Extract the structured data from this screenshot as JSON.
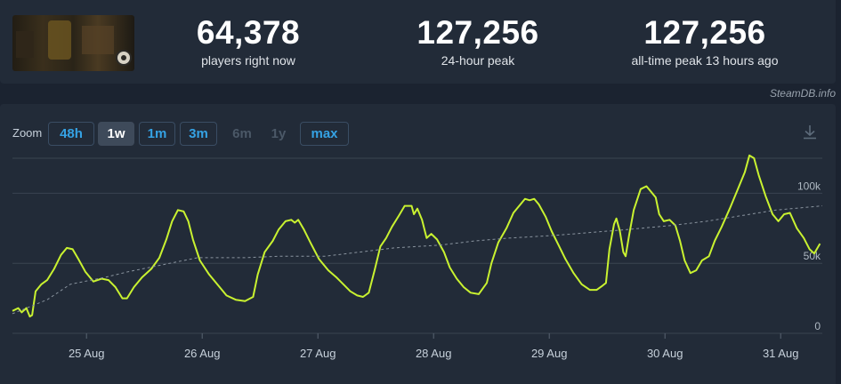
{
  "stats": {
    "now": {
      "value": "64,378",
      "label": "players right now"
    },
    "peak24": {
      "value": "127,256",
      "label": "24-hour peak"
    },
    "alltime": {
      "value": "127,256",
      "label": "all-time peak 13 hours ago"
    }
  },
  "credit": "SteamDB.info",
  "zoom": {
    "label": "Zoom",
    "buttons": [
      {
        "label": "48h",
        "state": "normal"
      },
      {
        "label": "1w",
        "state": "active"
      },
      {
        "label": "1m",
        "state": "normal"
      },
      {
        "label": "3m",
        "state": "normal"
      },
      {
        "label": "6m",
        "state": "disabled"
      },
      {
        "label": "1y",
        "state": "disabled"
      },
      {
        "label": "max",
        "state": "normal"
      }
    ]
  },
  "icons": {
    "download": "download-icon",
    "thumbnail": "game-thumbnail"
  },
  "colors": {
    "line": "#c9f230",
    "trend": "#8a949f",
    "grid": "#3a4451",
    "text": "#c6d0da"
  },
  "chart_data": {
    "type": "line",
    "title": "",
    "xlabel": "",
    "ylabel": "",
    "ylim": [
      0,
      125000
    ],
    "yticks": [
      {
        "value": 0,
        "label": "0"
      },
      {
        "value": 50000,
        "label": "50k"
      },
      {
        "value": 100000,
        "label": "100k"
      }
    ],
    "xlim": [
      0,
      7
    ],
    "xticks": [
      {
        "value": 0.64,
        "label": "25 Aug"
      },
      {
        "value": 1.64,
        "label": "26 Aug"
      },
      {
        "value": 2.64,
        "label": "27 Aug"
      },
      {
        "value": 3.64,
        "label": "28 Aug"
      },
      {
        "value": 4.64,
        "label": "29 Aug"
      },
      {
        "value": 5.64,
        "label": "30 Aug"
      },
      {
        "value": 6.64,
        "label": "31 Aug"
      }
    ],
    "grid": true,
    "series": [
      {
        "role": "players",
        "points": [
          [
            0.0,
            16000
          ],
          [
            0.05,
            18000
          ],
          [
            0.08,
            15000
          ],
          [
            0.12,
            18000
          ],
          [
            0.15,
            12000
          ],
          [
            0.17,
            13000
          ],
          [
            0.2,
            30000
          ],
          [
            0.25,
            35000
          ],
          [
            0.3,
            38000
          ],
          [
            0.36,
            46000
          ],
          [
            0.42,
            56000
          ],
          [
            0.47,
            61000
          ],
          [
            0.52,
            60000
          ],
          [
            0.57,
            53000
          ],
          [
            0.63,
            44000
          ],
          [
            0.7,
            37000
          ],
          [
            0.77,
            39000
          ],
          [
            0.83,
            38000
          ],
          [
            0.89,
            33000
          ],
          [
            0.95,
            25000
          ],
          [
            0.99,
            25000
          ],
          [
            1.05,
            33000
          ],
          [
            1.12,
            40000
          ],
          [
            1.2,
            46000
          ],
          [
            1.27,
            54000
          ],
          [
            1.33,
            67000
          ],
          [
            1.38,
            80000
          ],
          [
            1.43,
            88000
          ],
          [
            1.48,
            87000
          ],
          [
            1.52,
            80000
          ],
          [
            1.56,
            67000
          ],
          [
            1.62,
            52000
          ],
          [
            1.7,
            42000
          ],
          [
            1.77,
            35000
          ],
          [
            1.85,
            27000
          ],
          [
            1.93,
            24000
          ],
          [
            2.01,
            23000
          ],
          [
            2.08,
            26000
          ],
          [
            2.12,
            42000
          ],
          [
            2.18,
            58000
          ],
          [
            2.25,
            66000
          ],
          [
            2.3,
            74000
          ],
          [
            2.36,
            80000
          ],
          [
            2.41,
            81000
          ],
          [
            2.44,
            79000
          ],
          [
            2.47,
            81000
          ],
          [
            2.52,
            74000
          ],
          [
            2.58,
            64000
          ],
          [
            2.65,
            53000
          ],
          [
            2.73,
            45000
          ],
          [
            2.8,
            40000
          ],
          [
            2.86,
            35000
          ],
          [
            2.92,
            30000
          ],
          [
            2.98,
            27000
          ],
          [
            3.03,
            26000
          ],
          [
            3.08,
            29000
          ],
          [
            3.13,
            45000
          ],
          [
            3.18,
            62000
          ],
          [
            3.23,
            68000
          ],
          [
            3.28,
            76000
          ],
          [
            3.34,
            84000
          ],
          [
            3.39,
            91000
          ],
          [
            3.45,
            91000
          ],
          [
            3.47,
            85000
          ],
          [
            3.5,
            89000
          ],
          [
            3.54,
            81000
          ],
          [
            3.58,
            68000
          ],
          [
            3.62,
            71000
          ],
          [
            3.67,
            67000
          ],
          [
            3.73,
            58000
          ],
          [
            3.78,
            47000
          ],
          [
            3.84,
            39000
          ],
          [
            3.9,
            33000
          ],
          [
            3.96,
            29000
          ],
          [
            4.03,
            28000
          ],
          [
            4.1,
            36000
          ],
          [
            4.14,
            50000
          ],
          [
            4.2,
            65000
          ],
          [
            4.27,
            75000
          ],
          [
            4.33,
            86000
          ],
          [
            4.38,
            91000
          ],
          [
            4.43,
            96000
          ],
          [
            4.47,
            95000
          ],
          [
            4.51,
            96000
          ],
          [
            4.55,
            92000
          ],
          [
            4.61,
            83000
          ],
          [
            4.66,
            73000
          ],
          [
            4.72,
            63000
          ],
          [
            4.78,
            53000
          ],
          [
            4.85,
            43000
          ],
          [
            4.92,
            35000
          ],
          [
            4.99,
            31000
          ],
          [
            5.05,
            31000
          ],
          [
            5.1,
            34000
          ],
          [
            5.13,
            36000
          ],
          [
            5.16,
            60000
          ],
          [
            5.2,
            78000
          ],
          [
            5.22,
            82000
          ],
          [
            5.25,
            73000
          ],
          [
            5.28,
            58000
          ],
          [
            5.3,
            55000
          ],
          [
            5.33,
            70000
          ],
          [
            5.37,
            88000
          ],
          [
            5.43,
            103000
          ],
          [
            5.48,
            105000
          ],
          [
            5.52,
            101000
          ],
          [
            5.56,
            97000
          ],
          [
            5.59,
            85000
          ],
          [
            5.63,
            80000
          ],
          [
            5.68,
            81000
          ],
          [
            5.73,
            77000
          ],
          [
            5.77,
            66000
          ],
          [
            5.81,
            52000
          ],
          [
            5.86,
            43000
          ],
          [
            5.91,
            45000
          ],
          [
            5.96,
            52000
          ],
          [
            6.02,
            55000
          ],
          [
            6.07,
            66000
          ],
          [
            6.13,
            76000
          ],
          [
            6.2,
            89000
          ],
          [
            6.27,
            103000
          ],
          [
            6.33,
            115000
          ],
          [
            6.37,
            127000
          ],
          [
            6.41,
            125000
          ],
          [
            6.45,
            113000
          ],
          [
            6.51,
            98000
          ],
          [
            6.57,
            85000
          ],
          [
            6.62,
            80000
          ],
          [
            6.67,
            85000
          ],
          [
            6.72,
            86000
          ],
          [
            6.78,
            75000
          ],
          [
            6.84,
            68000
          ],
          [
            6.89,
            60000
          ],
          [
            6.93,
            57000
          ],
          [
            6.98,
            64000
          ]
        ]
      },
      {
        "role": "trend",
        "points": [
          [
            0.0,
            14000
          ],
          [
            0.3,
            24000
          ],
          [
            0.5,
            35000
          ],
          [
            0.8,
            40000
          ],
          [
            1.0,
            44000
          ],
          [
            1.3,
            49000
          ],
          [
            1.6,
            54000
          ],
          [
            2.0,
            54000
          ],
          [
            2.3,
            55000
          ],
          [
            2.7,
            55000
          ],
          [
            3.0,
            58000
          ],
          [
            3.3,
            61000
          ],
          [
            3.7,
            63000
          ],
          [
            4.0,
            66000
          ],
          [
            4.3,
            68000
          ],
          [
            4.7,
            70000
          ],
          [
            5.0,
            72000
          ],
          [
            5.3,
            74000
          ],
          [
            5.7,
            77000
          ],
          [
            6.0,
            80000
          ],
          [
            6.3,
            84000
          ],
          [
            6.6,
            88000
          ],
          [
            7.0,
            91000
          ]
        ]
      }
    ]
  }
}
